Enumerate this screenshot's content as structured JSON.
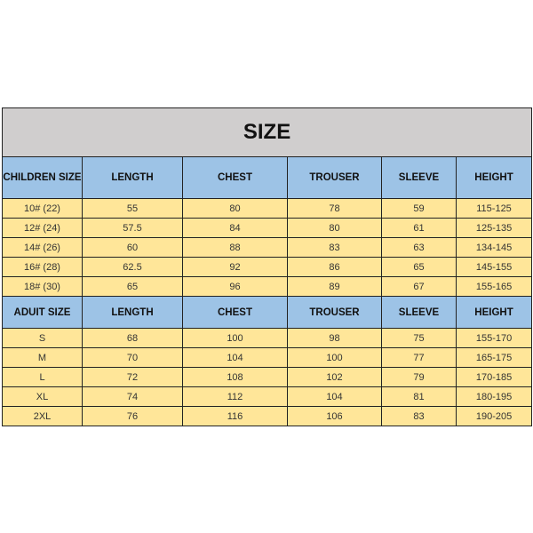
{
  "title": "SIZE",
  "colors": {
    "title_bg": "#d0cece",
    "header_bg": "#9dc3e6",
    "row_bg": "#ffe699"
  },
  "children": {
    "headers": [
      "CHILDREN SIZE",
      "LENGTH",
      "CHEST",
      "TROUSER",
      "SLEEVE",
      "HEIGHT"
    ],
    "rows": [
      [
        "10#  (22)",
        "55",
        "80",
        "78",
        "59",
        "115-125"
      ],
      [
        "12#  (24)",
        "57.5",
        "84",
        "80",
        "61",
        "125-135"
      ],
      [
        "14#  (26)",
        "60",
        "88",
        "83",
        "63",
        "134-145"
      ],
      [
        "16#  (28)",
        "62.5",
        "92",
        "86",
        "65",
        "145-155"
      ],
      [
        "18#  (30)",
        "65",
        "96",
        "89",
        "67",
        "155-165"
      ]
    ]
  },
  "adult": {
    "headers": [
      "ADUIT SIZE",
      "LENGTH",
      "CHEST",
      "TROUSER",
      "SLEEVE",
      "HEIGHT"
    ],
    "rows": [
      [
        "S",
        "68",
        "100",
        "98",
        "75",
        "155-170"
      ],
      [
        "M",
        "70",
        "104",
        "100",
        "77",
        "165-175"
      ],
      [
        "L",
        "72",
        "108",
        "102",
        "79",
        "170-185"
      ],
      [
        "XL",
        "74",
        "112",
        "104",
        "81",
        "180-195"
      ],
      [
        "2XL",
        "76",
        "116",
        "106",
        "83",
        "190-205"
      ]
    ]
  }
}
